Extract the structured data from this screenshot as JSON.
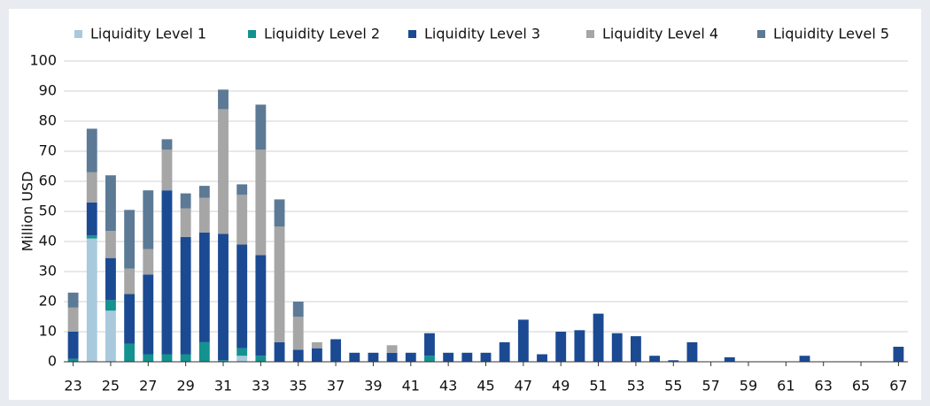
{
  "chart_data": {
    "type": "stacked_bar",
    "y_label": "Million USD",
    "x": [
      23,
      24,
      25,
      26,
      27,
      28,
      29,
      30,
      31,
      32,
      33,
      34,
      35,
      36,
      37,
      38,
      39,
      40,
      41,
      42,
      43,
      44,
      45,
      46,
      47,
      48,
      49,
      50,
      51,
      52,
      53,
      54,
      55,
      56,
      57,
      58,
      59,
      60,
      61,
      62,
      63,
      64,
      65,
      66,
      67
    ],
    "xlim": [
      22.5,
      67.5
    ],
    "xticks": [
      23,
      25,
      27,
      29,
      31,
      33,
      35,
      37,
      39,
      41,
      43,
      45,
      47,
      49,
      51,
      53,
      55,
      57,
      59,
      61,
      63,
      65,
      67
    ],
    "ylim": [
      0,
      100
    ],
    "yticks": [
      0,
      10,
      20,
      30,
      40,
      50,
      60,
      70,
      80,
      90,
      100
    ],
    "grid": true,
    "legend": "top",
    "series": [
      {
        "name": "Liquidity Level 1",
        "color": "#a9c9dd",
        "values": [
          0,
          41,
          17,
          0,
          0,
          0,
          0,
          0,
          0,
          2,
          0,
          0,
          0,
          0,
          0,
          0,
          0,
          0,
          0,
          0,
          0,
          0,
          0,
          0,
          0,
          0,
          0,
          0,
          0,
          0,
          0,
          0,
          0,
          0,
          0,
          0,
          0,
          0,
          0,
          0,
          0,
          0,
          0,
          0,
          0
        ]
      },
      {
        "name": "Liquidity Level 2",
        "color": "#13928f",
        "values": [
          1,
          1,
          3.5,
          6,
          2.5,
          2.5,
          2.5,
          6.5,
          0.5,
          2.5,
          2,
          0,
          0,
          0,
          0,
          0,
          0,
          0,
          0,
          2,
          0,
          0,
          0,
          0,
          0,
          0,
          0,
          0,
          0,
          0,
          0,
          0,
          0,
          0,
          0,
          0,
          0,
          0,
          0,
          0,
          0,
          0,
          0,
          0,
          0
        ]
      },
      {
        "name": "Liquidity Level 3",
        "color": "#1b4a93",
        "values": [
          9,
          11,
          14,
          16.5,
          26.5,
          54.5,
          39,
          36.5,
          42,
          34.5,
          33.5,
          6.5,
          4,
          4.5,
          7.5,
          3,
          3,
          3,
          3,
          7.5,
          3,
          3,
          3,
          6.5,
          14,
          2.5,
          10,
          10.5,
          16,
          9.5,
          8.5,
          2,
          0.5,
          6.5,
          0,
          1.5,
          0,
          0,
          0,
          2,
          0,
          0,
          0,
          0,
          5
        ]
      },
      {
        "name": "Liquidity Level 4",
        "color": "#a6a6a6",
        "values": [
          8,
          10,
          9,
          8.5,
          8.5,
          13.5,
          9.5,
          11.5,
          41.5,
          16.5,
          35,
          38.5,
          11,
          2,
          0,
          0,
          0,
          2.5,
          0,
          0,
          0,
          0,
          0,
          0,
          0,
          0,
          0,
          0,
          0,
          0,
          0,
          0,
          0,
          0,
          0,
          0,
          0,
          0,
          0,
          0,
          0,
          0,
          0,
          0,
          0
        ]
      },
      {
        "name": "Liquidity Level 5",
        "color": "#5c7a96",
        "values": [
          5,
          14.5,
          18.5,
          19.5,
          19.5,
          3.5,
          5,
          4,
          6.5,
          3.5,
          15,
          9,
          5,
          0,
          0,
          0,
          0,
          0,
          0,
          0,
          0,
          0,
          0,
          0,
          0,
          0,
          0,
          0,
          0,
          0,
          0,
          0,
          0,
          0,
          0,
          0,
          0,
          0,
          0,
          0,
          0,
          0,
          0,
          0,
          0
        ]
      }
    ]
  }
}
